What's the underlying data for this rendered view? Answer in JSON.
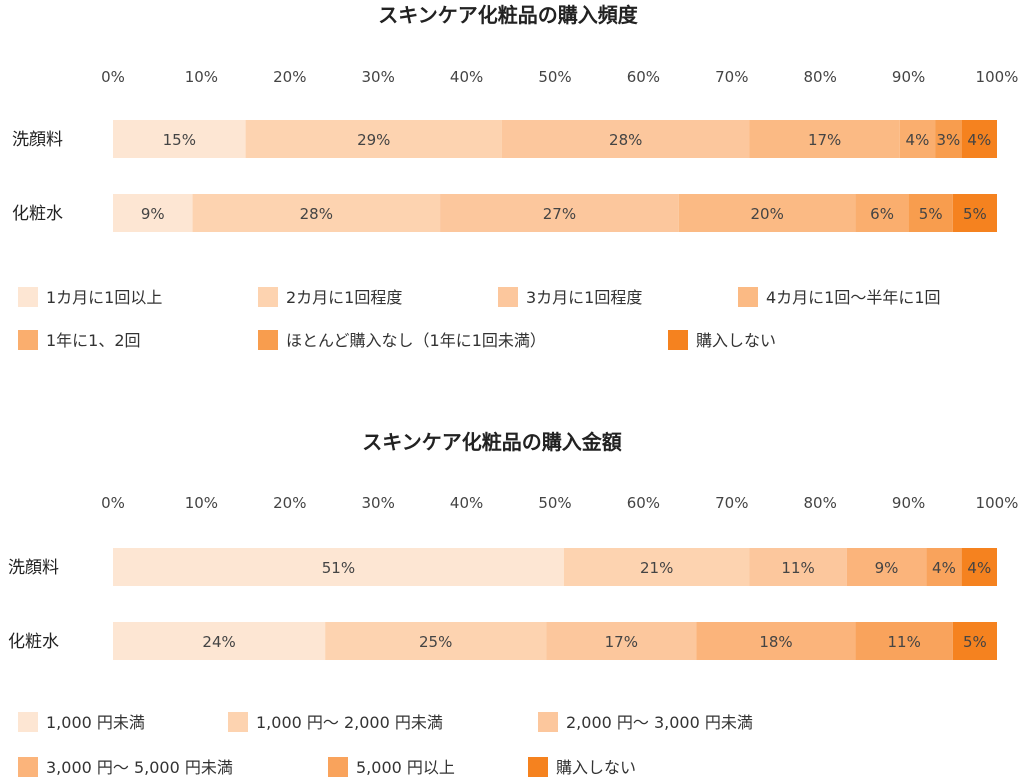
{
  "chart_data": [
    {
      "type": "bar",
      "orientation": "horizontal",
      "stacked": true,
      "title": "スキンケア化粧品の購入頻度",
      "xlim": [
        0,
        100
      ],
      "ticks": [
        "0%",
        "10%",
        "20%",
        "30%",
        "40%",
        "50%",
        "60%",
        "70%",
        "80%",
        "90%",
        "100%"
      ],
      "categories": [
        "洗顔料",
        "化粧水"
      ],
      "legend_placement": "bottom",
      "series": [
        {
          "name": "1カ月に1回以上",
          "color": "#FDE6D3",
          "values": [
            15,
            9
          ],
          "labels": [
            "15%",
            "9%"
          ]
        },
        {
          "name": "2カ月に1回程度",
          "color": "#FDD3B0",
          "values": [
            29,
            28
          ],
          "labels": [
            "29%",
            "28%"
          ]
        },
        {
          "name": "3カ月に1回程度",
          "color": "#FCC79D",
          "values": [
            28,
            27
          ],
          "labels": [
            "28%",
            "27%"
          ]
        },
        {
          "name": "4カ月に1回〜半年に1回",
          "color": "#FBBA84",
          "values": [
            17,
            20
          ],
          "labels": [
            "17%",
            "20%"
          ]
        },
        {
          "name": "1年に1、2回",
          "color": "#FAAE6E",
          "values": [
            4,
            6
          ],
          "labels": [
            "4%",
            "6%"
          ]
        },
        {
          "name": "ほとんど購入なし（1年に1回未満）",
          "color": "#F89D4E",
          "values": [
            3,
            5
          ],
          "labels": [
            "3%",
            "5%"
          ]
        },
        {
          "name": "購入しない",
          "color": "#F5821F",
          "values": [
            4,
            5
          ],
          "labels": [
            "4%",
            "5%"
          ]
        }
      ]
    },
    {
      "type": "bar",
      "orientation": "horizontal",
      "stacked": true,
      "title": "スキンケア化粧品の購入金額",
      "xlim": [
        0,
        100
      ],
      "ticks": [
        "0%",
        "10%",
        "20%",
        "30%",
        "40%",
        "50%",
        "60%",
        "70%",
        "80%",
        "90%",
        "100%"
      ],
      "categories": [
        "洗顔料",
        "化粧水"
      ],
      "legend_placement": "bottom",
      "series": [
        {
          "name": "1,000 円未満",
          "color": "#FDE6D3",
          "values": [
            51,
            24
          ],
          "labels": [
            "51%",
            "24%"
          ]
        },
        {
          "name": "1,000 円〜 2,000 円未満",
          "color": "#FDD3B0",
          "values": [
            21,
            25
          ],
          "labels": [
            "21%",
            "25%"
          ]
        },
        {
          "name": "2,000 円〜 3,000 円未満",
          "color": "#FCC79D",
          "values": [
            11,
            17
          ],
          "labels": [
            "11%",
            "17%"
          ]
        },
        {
          "name": "3,000 円〜 5,000 円未満",
          "color": "#FBB47B",
          "values": [
            9,
            18
          ],
          "labels": [
            "9%",
            "18%"
          ]
        },
        {
          "name": "5,000 円以上",
          "color": "#F9A35C",
          "values": [
            4,
            11
          ],
          "labels": [
            "4%",
            "11%"
          ]
        },
        {
          "name": "購入しない",
          "color": "#F5821F",
          "values": [
            4,
            5
          ],
          "labels": [
            "4%",
            "5%"
          ]
        }
      ]
    }
  ]
}
